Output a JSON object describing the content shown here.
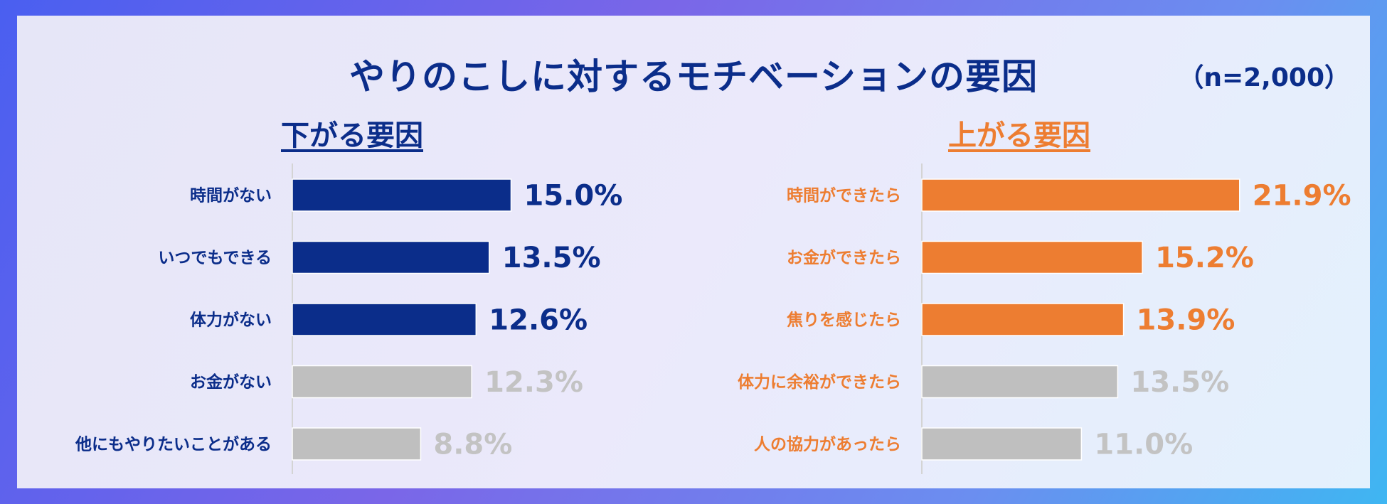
{
  "title": "やりのこしに対するモチベーションの要因",
  "sample_size": "（n=2,000）",
  "colors": {
    "navy": "#0b2d8a",
    "orange": "#ed7d31",
    "gray_bar": "#bfbfbf",
    "gray_text": "#c3c3c3"
  },
  "chart_data": [
    {
      "type": "bar",
      "orientation": "horizontal",
      "heading": "下がる要因",
      "unit": "%",
      "categories": [
        "時間がない",
        "いつでもできる",
        "体力がない",
        "お金がない",
        "他にもやりたいことがある"
      ],
      "values": [
        15.0,
        13.5,
        12.6,
        12.3,
        8.8
      ],
      "value_labels": [
        "15.0%",
        "13.5%",
        "12.6%",
        "12.3%",
        "8.8%"
      ],
      "highlighted": [
        true,
        true,
        true,
        false,
        false
      ]
    },
    {
      "type": "bar",
      "orientation": "horizontal",
      "heading": "上がる要因",
      "unit": "%",
      "categories": [
        "時間ができたら",
        "お金ができたら",
        "焦りを感じたら",
        "体力に余裕ができたら",
        "人の協力があったら"
      ],
      "values": [
        21.9,
        15.2,
        13.9,
        13.5,
        11.0
      ],
      "value_labels": [
        "21.9%",
        "15.2%",
        "13.9%",
        "13.5%",
        "11.0%"
      ],
      "highlighted": [
        true,
        true,
        true,
        false,
        false
      ]
    }
  ]
}
